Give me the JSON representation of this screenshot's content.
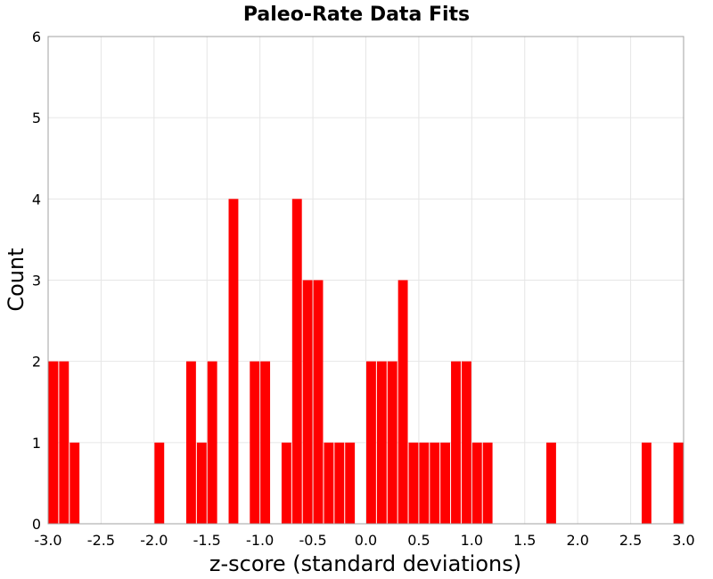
{
  "chart_data": {
    "type": "bar",
    "title": "Paleo-Rate Data Fits",
    "xlabel": "z-score (standard deviations)",
    "ylabel": "Count",
    "xlim": [
      -3.0,
      3.0
    ],
    "ylim": [
      0,
      6
    ],
    "bin_width": 0.1,
    "x_ticks": [
      "-3.0",
      "-2.5",
      "-2.0",
      "-1.5",
      "-1.0",
      "-0.5",
      "0.0",
      "0.5",
      "1.0",
      "1.5",
      "2.0",
      "2.5",
      "3.0"
    ],
    "y_ticks": [
      "0",
      "1",
      "2",
      "3",
      "4",
      "5",
      "6"
    ],
    "grid": true,
    "color": "#ff0000",
    "bins": [
      {
        "x": -2.95,
        "value": 2
      },
      {
        "x": -2.85,
        "value": 2
      },
      {
        "x": -2.75,
        "value": 1
      },
      {
        "x": -1.95,
        "value": 1
      },
      {
        "x": -1.65,
        "value": 2
      },
      {
        "x": -1.55,
        "value": 1
      },
      {
        "x": -1.45,
        "value": 2
      },
      {
        "x": -1.25,
        "value": 4
      },
      {
        "x": -1.05,
        "value": 2
      },
      {
        "x": -0.95,
        "value": 2
      },
      {
        "x": -0.75,
        "value": 1
      },
      {
        "x": -0.65,
        "value": 4
      },
      {
        "x": -0.55,
        "value": 3
      },
      {
        "x": -0.45,
        "value": 3
      },
      {
        "x": -0.35,
        "value": 1
      },
      {
        "x": -0.25,
        "value": 1
      },
      {
        "x": -0.15,
        "value": 1
      },
      {
        "x": 0.05,
        "value": 2
      },
      {
        "x": 0.15,
        "value": 2
      },
      {
        "x": 0.25,
        "value": 2
      },
      {
        "x": 0.35,
        "value": 3
      },
      {
        "x": 0.45,
        "value": 1
      },
      {
        "x": 0.55,
        "value": 1
      },
      {
        "x": 0.65,
        "value": 1
      },
      {
        "x": 0.75,
        "value": 1
      },
      {
        "x": 0.85,
        "value": 2
      },
      {
        "x": 0.95,
        "value": 2
      },
      {
        "x": 1.05,
        "value": 1
      },
      {
        "x": 1.15,
        "value": 1
      },
      {
        "x": 1.75,
        "value": 1
      },
      {
        "x": 2.65,
        "value": 1
      },
      {
        "x": 2.95,
        "value": 1
      }
    ]
  }
}
